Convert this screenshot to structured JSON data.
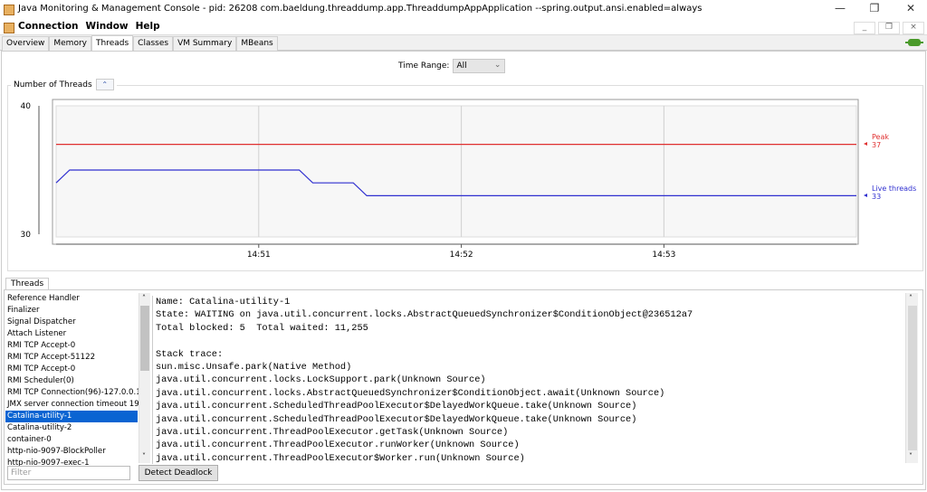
{
  "window": {
    "title": "Java Monitoring & Management Console - pid: 26208 com.baeldung.threaddump.app.ThreaddumpAppApplication --spring.output.ansi.enabled=always",
    "minimize": "—",
    "maximize": "❐",
    "close": "✕"
  },
  "menu": {
    "items": [
      "Connection",
      "Window",
      "Help"
    ],
    "mdi_minimize": "_",
    "mdi_restore": "❐",
    "mdi_close": "×"
  },
  "tabs": [
    {
      "label": "Overview"
    },
    {
      "label": "Memory"
    },
    {
      "label": "Threads",
      "active": true
    },
    {
      "label": "Classes"
    },
    {
      "label": "VM Summary"
    },
    {
      "label": "MBeans"
    }
  ],
  "time_range": {
    "label": "Time Range:",
    "value": "All"
  },
  "chart_group": {
    "title": "Number of Threads",
    "collapse_icon": "double-chevron-up-icon"
  },
  "chart_data": {
    "type": "line",
    "ylim": [
      30,
      40
    ],
    "yticks": [
      "40",
      "30"
    ],
    "xlim": [
      "14:50:00",
      "14:53:57"
    ],
    "xticks": [
      "14:51",
      "14:52",
      "14:53"
    ],
    "grid": true,
    "legend": "right",
    "series": [
      {
        "name": "Peak",
        "value_label": "37",
        "color": "#e03030",
        "x": [
          "14:50:00",
          "14:53:57"
        ],
        "y": [
          37,
          37
        ]
      },
      {
        "name": "Live threads",
        "value_label": "33",
        "color": "#3030d0",
        "x": [
          "14:50:00",
          "14:50:04",
          "14:51:12",
          "14:51:16",
          "14:51:28",
          "14:51:32",
          "14:53:57"
        ],
        "y": [
          34,
          35,
          35,
          34,
          34,
          33,
          33
        ]
      }
    ]
  },
  "threads": {
    "tab_label": "Threads",
    "list": [
      "Reference Handler",
      "Finalizer",
      "Signal Dispatcher",
      "Attach Listener",
      "RMI TCP Accept-0",
      "RMI TCP Accept-51122",
      "RMI TCP Accept-0",
      "RMI Scheduler(0)",
      "RMI TCP Connection(96)-127.0.0.1",
      "JMX server connection timeout 19",
      "Catalina-utility-1",
      "Catalina-utility-2",
      "container-0",
      "http-nio-9097-BlockPoller",
      "http-nio-9097-exec-1"
    ],
    "selected": "Catalina-utility-1",
    "detail": [
      "Name: Catalina-utility-1",
      "State: WAITING on java.util.concurrent.locks.AbstractQueuedSynchronizer$ConditionObject@236512a7",
      "Total blocked: 5  Total waited: 11,255",
      "",
      "Stack trace:",
      "sun.misc.Unsafe.park(Native Method)",
      "java.util.concurrent.locks.LockSupport.park(Unknown Source)",
      "java.util.concurrent.locks.AbstractQueuedSynchronizer$ConditionObject.await(Unknown Source)",
      "java.util.concurrent.ScheduledThreadPoolExecutor$DelayedWorkQueue.take(Unknown Source)",
      "java.util.concurrent.ScheduledThreadPoolExecutor$DelayedWorkQueue.take(Unknown Source)",
      "java.util.concurrent.ThreadPoolExecutor.getTask(Unknown Source)",
      "java.util.concurrent.ThreadPoolExecutor.runWorker(Unknown Source)",
      "java.util.concurrent.ThreadPoolExecutor$Worker.run(Unknown Source)"
    ],
    "filter_placeholder": "Filter",
    "detect_deadlock": "Detect Deadlock"
  }
}
